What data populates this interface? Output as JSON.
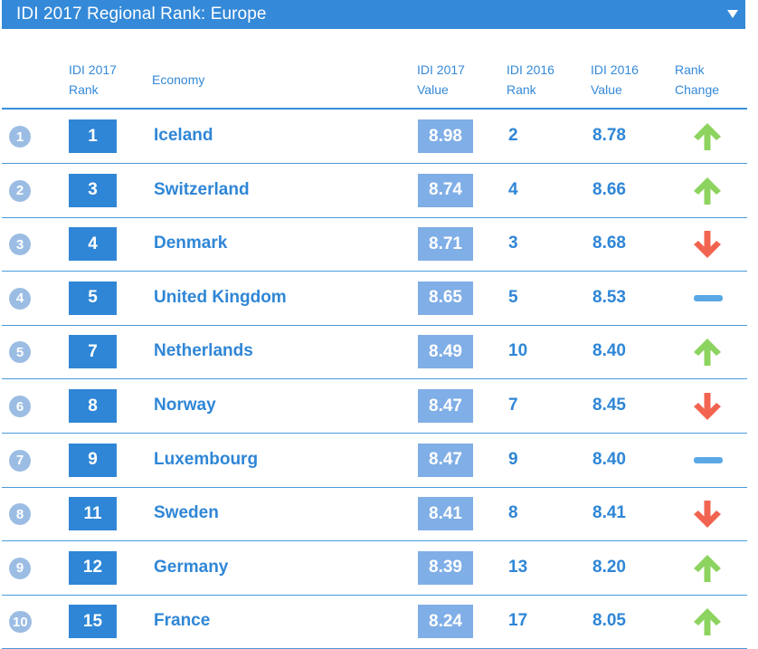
{
  "header": {
    "title": "IDI 2017 Regional Rank: Europe",
    "dropdown_icon": "caret-down-icon"
  },
  "columns": {
    "idi2017_rank": [
      "IDI 2017",
      "Rank"
    ],
    "economy": [
      "Economy"
    ],
    "idi2017_value": [
      "IDI 2017",
      "Value"
    ],
    "idi2016_rank": [
      "IDI 2016",
      "Rank"
    ],
    "idi2016_value": [
      "IDI 2016",
      "Value"
    ],
    "rank_change": [
      "Rank",
      "Change"
    ]
  },
  "colors": {
    "header_bg": "#3489d8",
    "rank_box": "#2f86d6",
    "value_box": "#80aee6",
    "up": "#8dd35f",
    "down": "#f26450",
    "same": "#5aa9e6",
    "row_index_circle": "#9cbde3"
  },
  "rows": [
    {
      "index": "1",
      "rank2017": "1",
      "economy": "Iceland",
      "value2017": "8.98",
      "rank2016": "2",
      "value2016": "8.78",
      "change": "up"
    },
    {
      "index": "2",
      "rank2017": "3",
      "economy": "Switzerland",
      "value2017": "8.74",
      "rank2016": "4",
      "value2016": "8.66",
      "change": "up"
    },
    {
      "index": "3",
      "rank2017": "4",
      "economy": "Denmark",
      "value2017": "8.71",
      "rank2016": "3",
      "value2016": "8.68",
      "change": "down"
    },
    {
      "index": "4",
      "rank2017": "5",
      "economy": "United Kingdom",
      "value2017": "8.65",
      "rank2016": "5",
      "value2016": "8.53",
      "change": "same"
    },
    {
      "index": "5",
      "rank2017": "7",
      "economy": "Netherlands",
      "value2017": "8.49",
      "rank2016": "10",
      "value2016": "8.40",
      "change": "up"
    },
    {
      "index": "6",
      "rank2017": "8",
      "economy": "Norway",
      "value2017": "8.47",
      "rank2016": "7",
      "value2016": "8.45",
      "change": "down"
    },
    {
      "index": "7",
      "rank2017": "9",
      "economy": "Luxembourg",
      "value2017": "8.47",
      "rank2016": "9",
      "value2016": "8.40",
      "change": "same"
    },
    {
      "index": "8",
      "rank2017": "11",
      "economy": "Sweden",
      "value2017": "8.41",
      "rank2016": "8",
      "value2016": "8.41",
      "change": "down"
    },
    {
      "index": "9",
      "rank2017": "12",
      "economy": "Germany",
      "value2017": "8.39",
      "rank2016": "13",
      "value2016": "8.20",
      "change": "up"
    },
    {
      "index": "10",
      "rank2017": "15",
      "economy": "France",
      "value2017": "8.24",
      "rank2016": "17",
      "value2016": "8.05",
      "change": "up"
    }
  ]
}
